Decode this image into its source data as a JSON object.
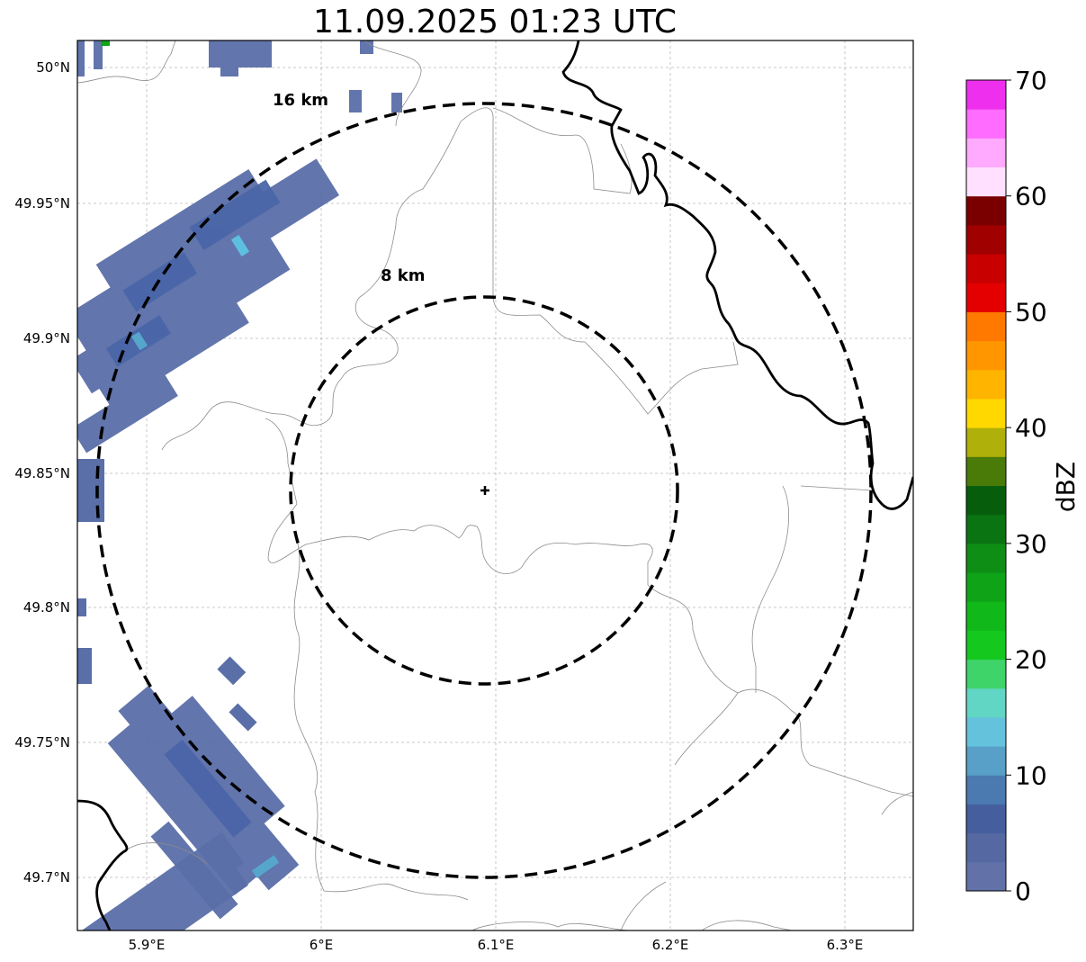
{
  "title": "11.09.2025 01:23 UTC",
  "map": {
    "lon_ticks": [
      "5.9°E",
      "6°E",
      "6.1°E",
      "6.2°E",
      "6.3°E"
    ],
    "lat_ticks": [
      "50°N",
      "49.95°N",
      "49.9°N",
      "49.85°N",
      "49.8°N",
      "49.75°N",
      "49.7°N"
    ],
    "rings": [
      {
        "label": "16 km",
        "radius_km": 16
      },
      {
        "label": "8 km",
        "radius_km": 8
      }
    ],
    "radar_site_marker": "plus-icon",
    "grid": true
  },
  "colorbar": {
    "label": "dBZ",
    "ticks": [
      "0",
      "10",
      "20",
      "30",
      "40",
      "50",
      "60",
      "70"
    ],
    "min": 0,
    "max": 70,
    "step": 2.5,
    "colors": [
      "#6272a8",
      "#5568a2",
      "#455f9e",
      "#4a7ab0",
      "#58a0c8",
      "#64c2dc",
      "#62d6c4",
      "#3ed46a",
      "#14c81e",
      "#10b81a",
      "#0fa418",
      "#0e8e14",
      "#0a7412",
      "#065e0c",
      "#4a7a08",
      "#b0b00a",
      "#ffd800",
      "#ffb400",
      "#ff9600",
      "#ff7800",
      "#e40000",
      "#c80000",
      "#a00000",
      "#7a0000",
      "#ffe0ff",
      "#ffaaff",
      "#ff6cff",
      "#ee30ee"
    ]
  }
}
